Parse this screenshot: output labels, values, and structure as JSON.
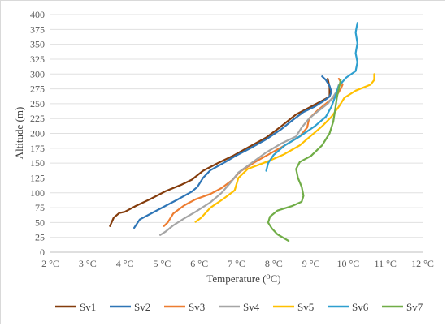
{
  "chart_data": {
    "type": "line",
    "xlabel": "Temperature (⁰C)",
    "ylabel": "Altitude (m)",
    "xlim": [
      2,
      12
    ],
    "ylim": [
      0,
      400
    ],
    "x_ticks": [
      2,
      3,
      4,
      5,
      6,
      7,
      8,
      9,
      10,
      11,
      12
    ],
    "x_tick_labels": [
      "2 °C",
      "3 °C",
      "4 °C",
      "5 °C",
      "6 °C",
      "7 °C",
      "8 °C",
      "9 °C",
      "10 °C",
      "11 °C",
      "12 °C"
    ],
    "y_ticks": [
      0,
      25,
      50,
      75,
      100,
      125,
      150,
      175,
      200,
      225,
      250,
      275,
      300,
      325,
      350,
      375,
      400
    ],
    "y_tick_labels": [
      "0",
      "25",
      "50",
      "75",
      "100",
      "125",
      "150",
      "175",
      "200",
      "225",
      "250",
      "275",
      "300",
      "325",
      "350",
      "375",
      "400"
    ],
    "grid": "horizontal",
    "legend_position": "bottom",
    "series": [
      {
        "name": "Sv1",
        "color": "#843c0c",
        "points": [
          [
            3.6,
            44
          ],
          [
            3.7,
            58
          ],
          [
            3.85,
            66
          ],
          [
            4.0,
            68
          ],
          [
            4.3,
            78
          ],
          [
            4.7,
            90
          ],
          [
            5.1,
            103
          ],
          [
            5.5,
            113
          ],
          [
            5.8,
            122
          ],
          [
            6.1,
            137
          ],
          [
            6.5,
            150
          ],
          [
            6.9,
            162
          ],
          [
            7.3,
            176
          ],
          [
            7.8,
            193
          ],
          [
            8.2,
            212
          ],
          [
            8.6,
            232
          ],
          [
            9.0,
            245
          ],
          [
            9.3,
            255
          ],
          [
            9.5,
            262
          ],
          [
            9.5,
            268
          ],
          [
            9.5,
            278
          ],
          [
            9.45,
            292
          ]
        ]
      },
      {
        "name": "Sv2",
        "color": "#2e75b6",
        "points": [
          [
            4.25,
            41
          ],
          [
            4.4,
            55
          ],
          [
            4.7,
            65
          ],
          [
            5.0,
            75
          ],
          [
            5.4,
            88
          ],
          [
            5.8,
            102
          ],
          [
            5.95,
            110
          ],
          [
            6.1,
            125
          ],
          [
            6.3,
            138
          ],
          [
            6.7,
            152
          ],
          [
            7.0,
            163
          ],
          [
            7.4,
            176
          ],
          [
            7.8,
            190
          ],
          [
            8.2,
            207
          ],
          [
            8.5,
            222
          ],
          [
            8.8,
            236
          ],
          [
            9.1,
            245
          ],
          [
            9.35,
            255
          ],
          [
            9.5,
            262
          ],
          [
            9.55,
            270
          ],
          [
            9.5,
            280
          ],
          [
            9.4,
            290
          ],
          [
            9.3,
            296
          ]
        ]
      },
      {
        "name": "Sv3",
        "color": "#ed7d31",
        "points": [
          [
            5.05,
            44
          ],
          [
            5.15,
            50
          ],
          [
            5.3,
            65
          ],
          [
            5.6,
            79
          ],
          [
            5.9,
            89
          ],
          [
            6.3,
            98
          ],
          [
            6.6,
            108
          ],
          [
            6.9,
            122
          ],
          [
            7.1,
            136
          ],
          [
            7.5,
            152
          ],
          [
            7.9,
            166
          ],
          [
            8.3,
            180
          ],
          [
            8.7,
            195
          ],
          [
            8.9,
            210
          ],
          [
            8.95,
            225
          ],
          [
            9.2,
            240
          ],
          [
            9.5,
            255
          ],
          [
            9.7,
            265
          ],
          [
            9.8,
            275
          ],
          [
            9.85,
            282
          ],
          [
            9.75,
            292
          ]
        ]
      },
      {
        "name": "Sv4",
        "color": "#a5a5a5",
        "points": [
          [
            4.95,
            29
          ],
          [
            5.1,
            35
          ],
          [
            5.3,
            45
          ],
          [
            5.6,
            57
          ],
          [
            5.9,
            68
          ],
          [
            6.3,
            84
          ],
          [
            6.6,
            100
          ],
          [
            6.85,
            118
          ],
          [
            7.05,
            134
          ],
          [
            7.4,
            150
          ],
          [
            7.8,
            168
          ],
          [
            8.2,
            183
          ],
          [
            8.6,
            195
          ],
          [
            8.75,
            210
          ],
          [
            8.95,
            225
          ],
          [
            9.2,
            238
          ],
          [
            9.45,
            250
          ],
          [
            9.6,
            262
          ],
          [
            9.7,
            272
          ],
          [
            9.75,
            282
          ]
        ]
      },
      {
        "name": "Sv5",
        "color": "#ffc000",
        "points": [
          [
            5.9,
            51
          ],
          [
            6.05,
            58
          ],
          [
            6.3,
            75
          ],
          [
            6.65,
            90
          ],
          [
            6.95,
            104
          ],
          [
            7.05,
            125
          ],
          [
            7.3,
            140
          ],
          [
            7.8,
            152
          ],
          [
            8.25,
            164
          ],
          [
            8.7,
            180
          ],
          [
            9.0,
            196
          ],
          [
            9.3,
            212
          ],
          [
            9.55,
            228
          ],
          [
            9.75,
            245
          ],
          [
            9.9,
            260
          ],
          [
            10.2,
            272
          ],
          [
            10.6,
            282
          ],
          [
            10.7,
            290
          ],
          [
            10.7,
            300
          ]
        ]
      },
      {
        "name": "Sv6",
        "color": "#2e9fcf",
        "points": [
          [
            7.8,
            137
          ],
          [
            7.85,
            150
          ],
          [
            8.0,
            164
          ],
          [
            8.3,
            180
          ],
          [
            8.7,
            195
          ],
          [
            9.1,
            212
          ],
          [
            9.4,
            228
          ],
          [
            9.55,
            245
          ],
          [
            9.65,
            262
          ],
          [
            9.75,
            280
          ],
          [
            9.95,
            294
          ],
          [
            10.2,
            305
          ],
          [
            10.25,
            320
          ],
          [
            10.2,
            335
          ],
          [
            10.25,
            352
          ],
          [
            10.2,
            370
          ],
          [
            10.25,
            386
          ]
        ]
      },
      {
        "name": "Sv7",
        "color": "#70ad47",
        "points": [
          [
            8.4,
            19
          ],
          [
            8.1,
            30
          ],
          [
            7.95,
            40
          ],
          [
            7.85,
            50
          ],
          [
            7.9,
            60
          ],
          [
            8.1,
            70
          ],
          [
            8.5,
            78
          ],
          [
            8.75,
            85
          ],
          [
            8.8,
            95
          ],
          [
            8.75,
            110
          ],
          [
            8.65,
            125
          ],
          [
            8.6,
            140
          ],
          [
            8.7,
            152
          ],
          [
            9.0,
            162
          ],
          [
            9.3,
            180
          ],
          [
            9.5,
            200
          ],
          [
            9.6,
            220
          ],
          [
            9.65,
            240
          ],
          [
            9.7,
            262
          ],
          [
            9.8,
            290
          ]
        ]
      }
    ]
  }
}
